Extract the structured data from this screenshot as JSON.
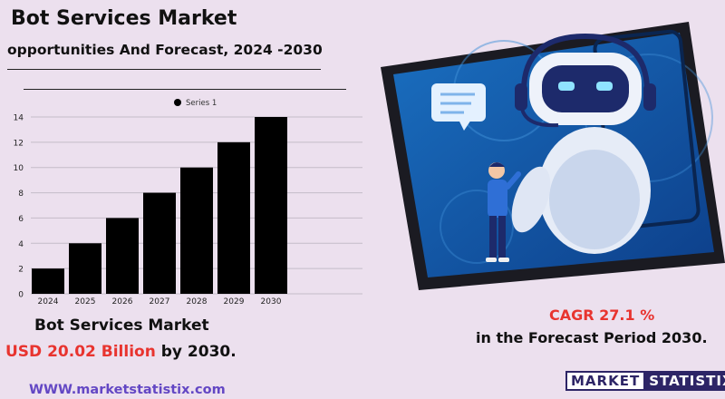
{
  "header": {
    "title": "Bot Services Market",
    "subtitle": "opportunities And Forecast, 2024 -2030"
  },
  "chart_data": {
    "type": "bar",
    "categories": [
      "2024",
      "2025",
      "2026",
      "2027",
      "2028",
      "2029",
      "2030"
    ],
    "series": [
      {
        "name": "Series 1",
        "values": [
          2,
          4,
          6,
          8,
          10,
          12,
          14
        ]
      }
    ],
    "ylim": [
      0,
      14
    ],
    "yticks": [
      0,
      2,
      4,
      6,
      8,
      10,
      12,
      14
    ],
    "grid": true,
    "legend": "top-center",
    "bar_color": "#000000"
  },
  "market": {
    "name": "Bot Services Market",
    "value": "USD 20.02 Billion",
    "suffix": " by 2030."
  },
  "cagr": {
    "label": "CAGR 27.1 %",
    "period": "in the  Forecast Period  2030."
  },
  "website": "WWW.marketstatistix.com",
  "logo": {
    "part1": "MARKET",
    "part2": "STATISTIX"
  },
  "colors": {
    "accent": "#e8342f",
    "background": "#ece0ee",
    "link": "#6347c4",
    "brand": "#2d2566"
  }
}
